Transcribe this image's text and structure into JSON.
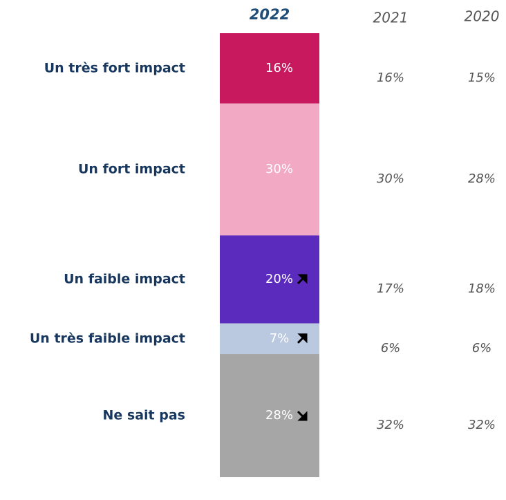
{
  "chart_data": {
    "type": "stacked_bar",
    "categories": [
      "Un très fort impact",
      "Un fort impact",
      "Un faible impact",
      "Un très faible impact",
      "Ne sait pas"
    ],
    "series": [
      {
        "name": "2022",
        "colors": [
          "#c8195e",
          "#f2a9c4",
          "#5b2bbd",
          "#bac8e0",
          "#a6a6a6"
        ],
        "values": [
          16,
          30,
          20,
          7,
          28
        ],
        "value_labels": [
          "16%",
          "30%",
          "20%",
          "7%",
          "28%"
        ],
        "trend": [
          null,
          null,
          "up",
          "up",
          "down"
        ]
      },
      {
        "name": "2021",
        "values": [
          16,
          30,
          17,
          6,
          32
        ],
        "value_labels": [
          "16%",
          "30%",
          "17%",
          "6%",
          "32%"
        ]
      },
      {
        "name": "2020",
        "values": [
          15,
          28,
          18,
          6,
          32
        ],
        "value_labels": [
          "15%",
          "28%",
          "18%",
          "6%",
          "32%"
        ]
      }
    ]
  }
}
